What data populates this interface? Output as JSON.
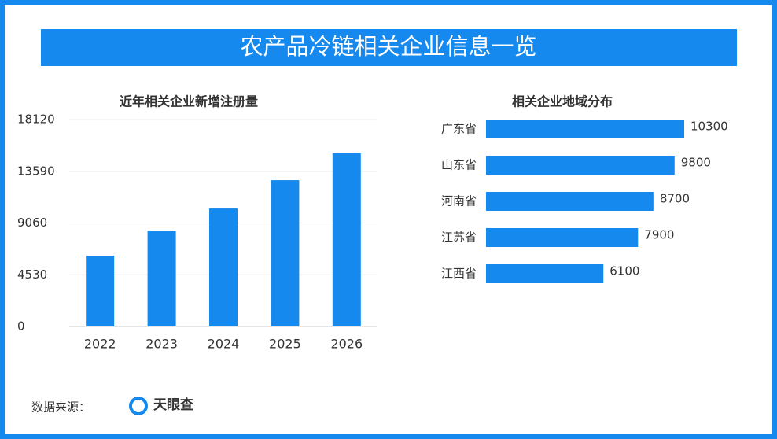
{
  "title": "农产品冷链相关企业信息一览",
  "chart_data": [
    {
      "type": "bar",
      "title": "近年相关企业新增注册量",
      "categories": [
        "2022",
        "2023",
        "2024",
        "2025",
        "2026"
      ],
      "values": [
        6200,
        8400,
        10330,
        12810,
        15160
      ],
      "color": "#1589ee",
      "ylim": [
        0,
        18120
      ],
      "yticks": [
        0,
        4530,
        9060,
        13590,
        18120
      ],
      "grid": true
    },
    {
      "type": "hbar",
      "title": "相关企业地域分布",
      "categories": [
        "广东省",
        "山东省",
        "河南省",
        "江苏省",
        "江西省"
      ],
      "values": [
        10300,
        9800,
        8700,
        7900,
        6100
      ],
      "color": "#1589ee"
    }
  ],
  "footer": {
    "label": "数据来源：",
    "source": "天眼查"
  }
}
